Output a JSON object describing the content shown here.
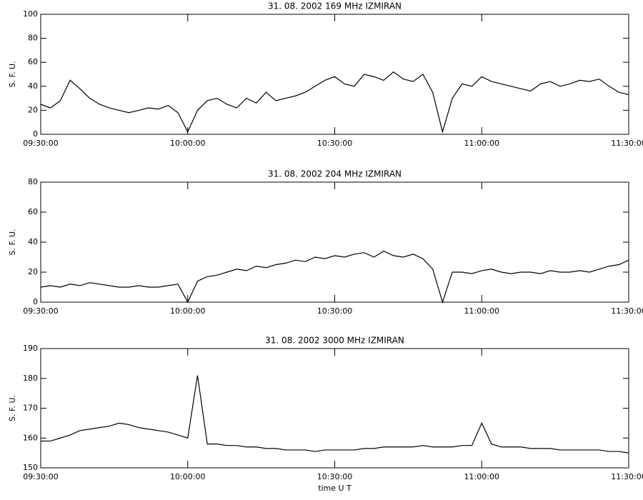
{
  "chart_data": [
    {
      "type": "line",
      "title": "31.  08.  2002    169 MHz    IZMIRAN",
      "y_label": "S. F. U.",
      "x": [
        "09:30:00",
        "09:32:00",
        "09:34:00",
        "09:36:00",
        "09:38:00",
        "09:40:00",
        "09:42:00",
        "09:44:00",
        "09:46:00",
        "09:48:00",
        "09:50:00",
        "09:52:00",
        "09:54:00",
        "09:56:00",
        "09:58:00",
        "10:00:00",
        "10:02:00",
        "10:04:00",
        "10:06:00",
        "10:08:00",
        "10:10:00",
        "10:12:00",
        "10:14:00",
        "10:16:00",
        "10:18:00",
        "10:20:00",
        "10:22:00",
        "10:24:00",
        "10:26:00",
        "10:28:00",
        "10:30:00",
        "10:32:00",
        "10:34:00",
        "10:36:00",
        "10:38:00",
        "10:40:00",
        "10:42:00",
        "10:44:00",
        "10:46:00",
        "10:48:00",
        "10:50:00",
        "10:52:00",
        "10:54:00",
        "10:56:00",
        "10:58:00",
        "11:00:00",
        "11:02:00",
        "11:04:00",
        "11:06:00",
        "11:08:00",
        "11:10:00",
        "11:12:00",
        "11:14:00",
        "11:16:00",
        "11:18:00",
        "11:20:00",
        "11:22:00",
        "11:24:00",
        "11:26:00",
        "11:28:00",
        "11:30:00"
      ],
      "series": [
        {
          "color": "#000000",
          "values": [
            25,
            22,
            28,
            45,
            38,
            30,
            25,
            22,
            20,
            18,
            20,
            22,
            21,
            24,
            18,
            2,
            20,
            28,
            30,
            25,
            22,
            30,
            26,
            35,
            28,
            30,
            32,
            35,
            40,
            45,
            48,
            42,
            40,
            50,
            48,
            45,
            52,
            46,
            44,
            50,
            35,
            2,
            30,
            42,
            40,
            48,
            44,
            42,
            40,
            38,
            36,
            42,
            44,
            40,
            42,
            45,
            44,
            46,
            40,
            35,
            33
          ]
        }
      ],
      "xlim": [
        "09:30:00",
        "11:30:00"
      ],
      "xticks": [
        "09:30:00",
        "10:00:00",
        "10:30:00",
        "11:00:00",
        "11:30:00"
      ],
      "ylim": [
        0,
        100
      ],
      "yticks": [
        0,
        20,
        40,
        60,
        80,
        100
      ]
    },
    {
      "type": "line",
      "title": "31.  08.  2002    204 MHz    IZMIRAN",
      "y_label": "S. F. U.",
      "x": [
        "09:30:00",
        "09:32:00",
        "09:34:00",
        "09:36:00",
        "09:38:00",
        "09:40:00",
        "09:42:00",
        "09:44:00",
        "09:46:00",
        "09:48:00",
        "09:50:00",
        "09:52:00",
        "09:54:00",
        "09:56:00",
        "09:58:00",
        "10:00:00",
        "10:02:00",
        "10:04:00",
        "10:06:00",
        "10:08:00",
        "10:10:00",
        "10:12:00",
        "10:14:00",
        "10:16:00",
        "10:18:00",
        "10:20:00",
        "10:22:00",
        "10:24:00",
        "10:26:00",
        "10:28:00",
        "10:30:00",
        "10:32:00",
        "10:34:00",
        "10:36:00",
        "10:38:00",
        "10:40:00",
        "10:42:00",
        "10:44:00",
        "10:46:00",
        "10:48:00",
        "10:50:00",
        "10:52:00",
        "10:54:00",
        "10:56:00",
        "10:58:00",
        "11:00:00",
        "11:02:00",
        "11:04:00",
        "11:06:00",
        "11:08:00",
        "11:10:00",
        "11:12:00",
        "11:14:00",
        "11:16:00",
        "11:18:00",
        "11:20:00",
        "11:22:00",
        "11:24:00",
        "11:26:00",
        "11:28:00",
        "11:30:00"
      ],
      "series": [
        {
          "color": "#000000",
          "values": [
            10,
            11,
            10,
            12,
            11,
            13,
            12,
            11,
            10,
            10,
            11,
            10,
            10,
            11,
            12,
            0,
            14,
            17,
            18,
            20,
            22,
            21,
            24,
            23,
            25,
            26,
            28,
            27,
            30,
            29,
            31,
            30,
            32,
            33,
            30,
            34,
            31,
            30,
            32,
            29,
            22,
            0,
            20,
            20,
            19,
            21,
            22,
            20,
            19,
            20,
            20,
            19,
            21,
            20,
            20,
            21,
            20,
            22,
            24,
            25,
            28
          ]
        }
      ],
      "xlim": [
        "09:30:00",
        "11:30:00"
      ],
      "xticks": [
        "09:30:00",
        "10:00:00",
        "10:30:00",
        "11:00:00",
        "11:30:00"
      ],
      "ylim": [
        0,
        80
      ],
      "yticks": [
        0,
        20,
        40,
        60,
        80
      ]
    },
    {
      "type": "line",
      "title": "31.  08.  2002    3000 MHz    IZMIRAN",
      "y_label": "S. F. U.",
      "x_label": "time  U T",
      "x": [
        "09:30:00",
        "09:32:00",
        "09:34:00",
        "09:36:00",
        "09:38:00",
        "09:40:00",
        "09:42:00",
        "09:44:00",
        "09:46:00",
        "09:48:00",
        "09:50:00",
        "09:52:00",
        "09:54:00",
        "09:56:00",
        "09:58:00",
        "10:00:00",
        "10:02:00",
        "10:04:00",
        "10:06:00",
        "10:08:00",
        "10:10:00",
        "10:12:00",
        "10:14:00",
        "10:16:00",
        "10:18:00",
        "10:20:00",
        "10:22:00",
        "10:24:00",
        "10:26:00",
        "10:28:00",
        "10:30:00",
        "10:32:00",
        "10:34:00",
        "10:36:00",
        "10:38:00",
        "10:40:00",
        "10:42:00",
        "10:44:00",
        "10:46:00",
        "10:48:00",
        "10:50:00",
        "10:52:00",
        "10:54:00",
        "10:56:00",
        "10:58:00",
        "11:00:00",
        "11:02:00",
        "11:04:00",
        "11:06:00",
        "11:08:00",
        "11:10:00",
        "11:12:00",
        "11:14:00",
        "11:16:00",
        "11:18:00",
        "11:20:00",
        "11:22:00",
        "11:24:00",
        "11:26:00",
        "11:28:00",
        "11:30:00"
      ],
      "series": [
        {
          "color": "#000000",
          "values": [
            159,
            159,
            160,
            161,
            162.5,
            163,
            163.5,
            164,
            165,
            164.5,
            163.5,
            163,
            162.5,
            162,
            161,
            160,
            181,
            158,
            158,
            157.5,
            157.5,
            157,
            157,
            156.5,
            156.5,
            156,
            156,
            156,
            155.5,
            156,
            156,
            156,
            156,
            156.5,
            156.5,
            157,
            157,
            157,
            157,
            157.5,
            157,
            157,
            157,
            157.5,
            157.5,
            165,
            158,
            157,
            157,
            157,
            156.5,
            156.5,
            156.5,
            156,
            156,
            156,
            156,
            156,
            155.5,
            155.5,
            155
          ]
        }
      ],
      "xlim": [
        "09:30:00",
        "11:30:00"
      ],
      "xticks": [
        "09:30:00",
        "10:00:00",
        "10:30:00",
        "11:00:00",
        "11:30:00"
      ],
      "ylim": [
        150,
        190
      ],
      "yticks": [
        150,
        160,
        170,
        180,
        190
      ]
    }
  ]
}
